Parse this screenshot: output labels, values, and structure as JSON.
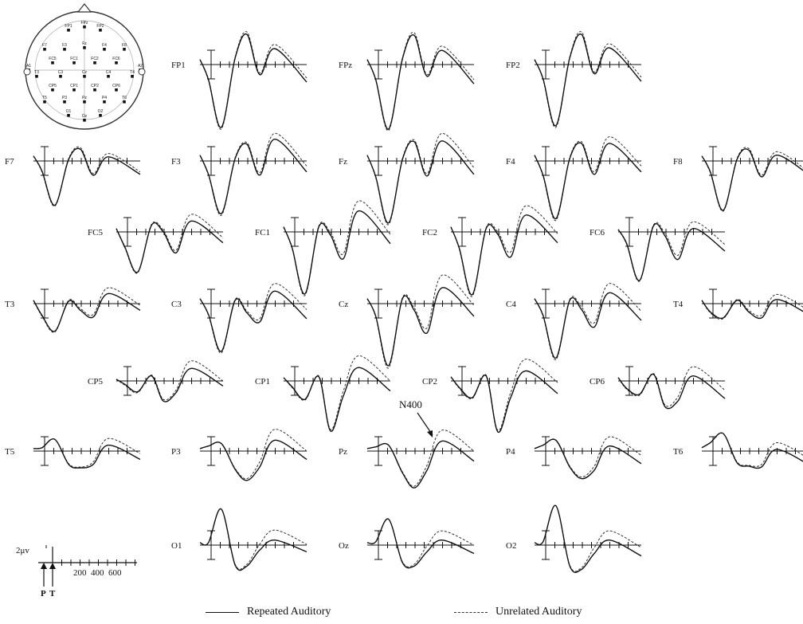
{
  "chart_data": {
    "type": "line",
    "grid": false,
    "legend_position": "bottom",
    "series": [
      {
        "name": "Repeated Auditory",
        "style": "solid",
        "color": "#111111"
      },
      {
        "name": "Unrelated Auditory",
        "style": "dashed",
        "color": "#333333"
      }
    ],
    "annotation": {
      "label": "N400",
      "electrode": "Pz",
      "time_ms": 400
    },
    "scale": {
      "amplitude_label": "2μv",
      "x_tick_labels": [
        "200",
        "400",
        "600"
      ],
      "onset_labels": [
        "P",
        "T"
      ]
    },
    "waveform_peaks_ms": [
      100,
      170,
      240,
      300,
      400
    ],
    "electrodes": [
      {
        "name": "FP1",
        "repeated": [
          0.6,
          -1.8,
          -7.5,
          0.8,
          3.6,
          -1.2,
          1.9,
          -2.1
        ],
        "unrelated": [
          0.6,
          -1.9,
          -7.7,
          0.9,
          3.9,
          -1.0,
          2.4,
          -1.6
        ]
      },
      {
        "name": "FPz",
        "repeated": [
          0.6,
          -1.8,
          -7.7,
          0.7,
          3.5,
          -1.4,
          1.7,
          -2.3
        ],
        "unrelated": [
          0.6,
          -1.9,
          -7.9,
          0.8,
          3.8,
          -1.2,
          2.2,
          -1.8
        ]
      },
      {
        "name": "FP2",
        "repeated": [
          0.6,
          -1.7,
          -7.3,
          0.8,
          3.6,
          -1.1,
          2.0,
          -2.0
        ],
        "unrelated": [
          0.6,
          -1.8,
          -7.5,
          0.9,
          3.9,
          -0.9,
          2.5,
          -1.5
        ]
      },
      {
        "name": "F7",
        "repeated": [
          0.6,
          -1.2,
          -5.3,
          0.2,
          1.4,
          -1.7,
          0.5,
          -1.6
        ],
        "unrelated": [
          0.6,
          -1.3,
          -5.4,
          0.3,
          1.6,
          -1.5,
          0.9,
          -1.3
        ]
      },
      {
        "name": "F3",
        "repeated": [
          0.7,
          -1.6,
          -6.3,
          0.3,
          2.0,
          -1.7,
          2.6,
          -1.3
        ],
        "unrelated": [
          0.7,
          -1.7,
          -6.5,
          0.4,
          2.2,
          -1.4,
          3.3,
          -0.6
        ]
      },
      {
        "name": "Fz",
        "repeated": [
          0.7,
          -1.9,
          -7.4,
          0.2,
          2.3,
          -1.8,
          2.4,
          -1.6
        ],
        "unrelated": [
          0.7,
          -2.0,
          -7.6,
          0.3,
          2.5,
          -1.5,
          3.3,
          -0.8
        ]
      },
      {
        "name": "F4",
        "repeated": [
          0.7,
          -1.7,
          -6.9,
          0.3,
          2.1,
          -1.6,
          2.1,
          -1.3
        ],
        "unrelated": [
          0.7,
          -1.8,
          -7.1,
          0.4,
          2.3,
          -1.3,
          2.9,
          -0.6
        ]
      },
      {
        "name": "F8",
        "repeated": [
          0.6,
          -1.3,
          -5.9,
          0.2,
          1.3,
          -1.9,
          0.7,
          -1.6
        ],
        "unrelated": [
          0.6,
          -1.4,
          -6.0,
          0.3,
          1.5,
          -1.7,
          1.1,
          -1.3
        ]
      },
      {
        "name": "FC5",
        "repeated": [
          0.4,
          -1.8,
          -4.8,
          0.8,
          0.0,
          -2.5,
          1.3,
          -1.3
        ],
        "unrelated": [
          0.4,
          -1.9,
          -4.9,
          0.9,
          0.2,
          -2.2,
          2.1,
          -0.7
        ]
      },
      {
        "name": "FC1",
        "repeated": [
          0.6,
          -1.9,
          -7.4,
          0.6,
          -0.4,
          -3.2,
          2.5,
          -1.4
        ],
        "unrelated": [
          0.6,
          -2.0,
          -7.6,
          0.7,
          -0.1,
          -2.6,
          3.7,
          -0.3
        ]
      },
      {
        "name": "FC2",
        "repeated": [
          0.6,
          -2.0,
          -7.5,
          0.4,
          -0.3,
          -3.0,
          2.0,
          -1.3
        ],
        "unrelated": [
          0.6,
          -2.1,
          -7.7,
          0.5,
          0.0,
          -2.4,
          3.1,
          -0.2
        ]
      },
      {
        "name": "FC6",
        "repeated": [
          0.3,
          -1.4,
          -5.8,
          0.7,
          -0.5,
          -3.3,
          0.4,
          -2.3
        ],
        "unrelated": [
          0.3,
          -1.5,
          -5.9,
          0.8,
          -0.2,
          -2.8,
          1.2,
          -1.5
        ]
      },
      {
        "name": "T3",
        "repeated": [
          0.4,
          -1.4,
          -3.3,
          0.3,
          -0.8,
          -1.6,
          1.2,
          -0.8
        ],
        "unrelated": [
          0.4,
          -1.5,
          -3.4,
          0.4,
          -0.6,
          -1.3,
          1.9,
          -0.2
        ]
      },
      {
        "name": "C3",
        "repeated": [
          0.6,
          -1.3,
          -5.7,
          0.4,
          -1.1,
          -2.2,
          1.5,
          -1.8
        ],
        "unrelated": [
          0.6,
          -1.4,
          -5.9,
          0.5,
          -0.9,
          -1.8,
          2.4,
          -0.7
        ]
      },
      {
        "name": "Cz",
        "repeated": [
          0.6,
          -1.5,
          -7.4,
          0.6,
          -0.8,
          -3.5,
          1.9,
          -1.5
        ],
        "unrelated": [
          0.6,
          -1.6,
          -7.7,
          0.7,
          -0.5,
          -2.9,
          3.4,
          -0.2
        ]
      },
      {
        "name": "C4",
        "repeated": [
          0.6,
          -1.4,
          -6.5,
          0.4,
          -0.7,
          -2.8,
          1.3,
          -2.0
        ],
        "unrelated": [
          0.6,
          -1.5,
          -6.7,
          0.5,
          -0.4,
          -2.3,
          2.4,
          -0.9
        ]
      },
      {
        "name": "T4",
        "repeated": [
          0.4,
          -1.0,
          -1.7,
          0.4,
          -1.0,
          -1.7,
          0.5,
          -1.3
        ],
        "unrelated": [
          0.4,
          -1.1,
          -1.8,
          0.5,
          -0.8,
          -1.4,
          1.1,
          -0.8
        ]
      },
      {
        "name": "CP5",
        "repeated": [
          0.2,
          -0.4,
          -1.3,
          0.6,
          -2.4,
          -1.4,
          1.5,
          -0.6
        ],
        "unrelated": [
          0.2,
          -0.5,
          -1.4,
          0.7,
          -2.2,
          -1.1,
          2.4,
          0.0
        ]
      },
      {
        "name": "CP1",
        "repeated": [
          0.4,
          -0.7,
          -2.2,
          0.5,
          -6.0,
          -1.8,
          1.6,
          -1.2
        ],
        "unrelated": [
          0.4,
          -0.8,
          -2.3,
          0.6,
          -5.8,
          -1.2,
          3.0,
          0.0
        ]
      },
      {
        "name": "CP2",
        "repeated": [
          0.5,
          -0.8,
          -2.0,
          0.6,
          -6.1,
          -2.0,
          1.2,
          -1.5
        ],
        "unrelated": [
          0.5,
          -0.9,
          -2.1,
          0.7,
          -5.9,
          -1.4,
          2.6,
          -0.2
        ]
      },
      {
        "name": "CP6",
        "repeated": [
          0.4,
          -0.9,
          -1.6,
          0.8,
          -3.1,
          -2.4,
          0.6,
          -2.1
        ],
        "unrelated": [
          0.4,
          -1.0,
          -1.7,
          0.9,
          -2.9,
          -1.9,
          1.7,
          -1.1
        ]
      },
      {
        "name": "T5",
        "repeated": [
          0.3,
          0.4,
          1.4,
          -1.6,
          -2.0,
          -1.6,
          0.7,
          -1.0
        ],
        "unrelated": [
          0.3,
          0.4,
          1.4,
          -1.5,
          -1.9,
          -1.3,
          1.5,
          -0.3
        ]
      },
      {
        "name": "P3",
        "repeated": [
          0.3,
          0.6,
          0.9,
          -2.2,
          -3.5,
          -1.9,
          1.3,
          -1.0
        ],
        "unrelated": [
          0.3,
          0.6,
          0.9,
          -2.1,
          -3.3,
          -1.3,
          2.6,
          0.0
        ]
      },
      {
        "name": "Pz",
        "repeated": [
          0.3,
          0.5,
          0.7,
          -2.6,
          -4.4,
          -2.3,
          1.2,
          -1.2
        ],
        "unrelated": [
          0.3,
          0.5,
          0.7,
          -2.5,
          -4.2,
          -1.7,
          2.5,
          0.0
        ]
      },
      {
        "name": "P4",
        "repeated": [
          0.3,
          0.7,
          1.3,
          -1.9,
          -3.3,
          -2.3,
          0.6,
          -1.5
        ],
        "unrelated": [
          0.3,
          0.7,
          1.3,
          -1.8,
          -3.1,
          -1.8,
          1.7,
          -0.5
        ]
      },
      {
        "name": "T6",
        "repeated": [
          0.4,
          1.0,
          2.1,
          -1.4,
          -1.8,
          -1.9,
          0.2,
          -1.6
        ],
        "unrelated": [
          0.4,
          1.0,
          2.1,
          -1.3,
          -1.7,
          -1.6,
          1.0,
          -0.9
        ]
      },
      {
        "name": "O1",
        "repeated": [
          0.3,
          0.3,
          4.3,
          -2.4,
          -2.5,
          -0.6,
          0.6,
          -0.8
        ],
        "unrelated": [
          0.3,
          0.3,
          4.3,
          -2.3,
          -2.3,
          0.1,
          1.8,
          0.1
        ]
      },
      {
        "name": "Oz",
        "repeated": [
          0.3,
          0.4,
          3.1,
          -2.1,
          -2.5,
          -0.8,
          0.6,
          -1.0
        ],
        "unrelated": [
          0.3,
          0.4,
          3.1,
          -2.0,
          -2.3,
          -0.1,
          1.7,
          0.0
        ]
      },
      {
        "name": "O2",
        "repeated": [
          0.3,
          0.4,
          4.7,
          -2.5,
          -2.9,
          -1.0,
          0.6,
          -1.3
        ],
        "unrelated": [
          0.3,
          0.4,
          4.7,
          -2.4,
          -2.7,
          -0.3,
          1.7,
          -0.3
        ]
      }
    ],
    "scalp_map": {
      "electrodes": [
        "FP1",
        "FPz",
        "FP2",
        "F7",
        "F3",
        "Fz",
        "F4",
        "F8",
        "FC5",
        "FC1",
        "FC2",
        "FC6",
        "T3",
        "C3",
        "Cz",
        "C4",
        "T4",
        "CP5",
        "CP1",
        "CP2",
        "CP6",
        "T5",
        "P3",
        "Pz",
        "P4",
        "T6",
        "O1",
        "Oz",
        "O2",
        "A1",
        "A2"
      ]
    }
  },
  "legend": {
    "repeated": "Repeated  Auditory",
    "unrelated": "Unrelated  Auditory"
  }
}
